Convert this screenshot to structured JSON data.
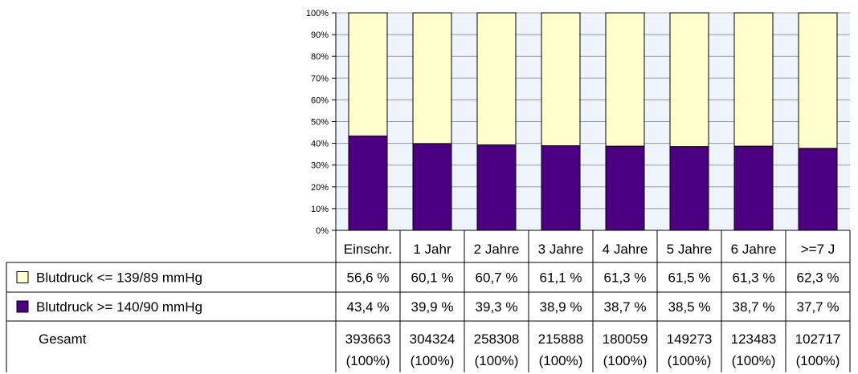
{
  "chart_data": {
    "type": "bar",
    "stacked": true,
    "percent_stacked": true,
    "categories": [
      "Einschr.",
      "1 Jahr",
      "2 Jahre",
      "3 Jahre",
      "4 Jahre",
      "5 Jahre",
      "6 Jahre",
      ">=7 J"
    ],
    "series": [
      {
        "name": "Blutdruck <= 139/89 mmHg",
        "color": "#ffffcc",
        "values": [
          56.6,
          60.1,
          60.7,
          61.1,
          61.3,
          61.5,
          61.3,
          62.3
        ],
        "labels": [
          "56,6 %",
          "60,1 %",
          "60,7 %",
          "61,1 %",
          "61,3 %",
          "61,5 %",
          "61,3 %",
          "62,3 %"
        ]
      },
      {
        "name": "Blutdruck >= 140/90 mmHg",
        "color": "#4b0082",
        "values": [
          43.4,
          39.9,
          39.3,
          38.9,
          38.7,
          38.5,
          38.7,
          37.7
        ],
        "labels": [
          "43,4 %",
          "39,9 %",
          "39,3 %",
          "38,9 %",
          "38,7 %",
          "38,5 %",
          "38,7 %",
          "37,7 %"
        ]
      }
    ],
    "totals": {
      "label": "Gesamt",
      "values": [
        "393663",
        "304324",
        "258308",
        "215888",
        "180059",
        "149273",
        "123483",
        "102717"
      ],
      "percent": [
        "(100%)",
        "(100%)",
        "(100%)",
        "(100%)",
        "(100%)",
        "(100%)",
        "(100%)",
        "(100%)"
      ]
    },
    "yticks": [
      "0%",
      "10%",
      "20%",
      "30%",
      "40%",
      "50%",
      "60%",
      "70%",
      "80%",
      "90%",
      "100%"
    ],
    "ylim": [
      0,
      100
    ],
    "grid": true,
    "legend": "data-table-left"
  }
}
